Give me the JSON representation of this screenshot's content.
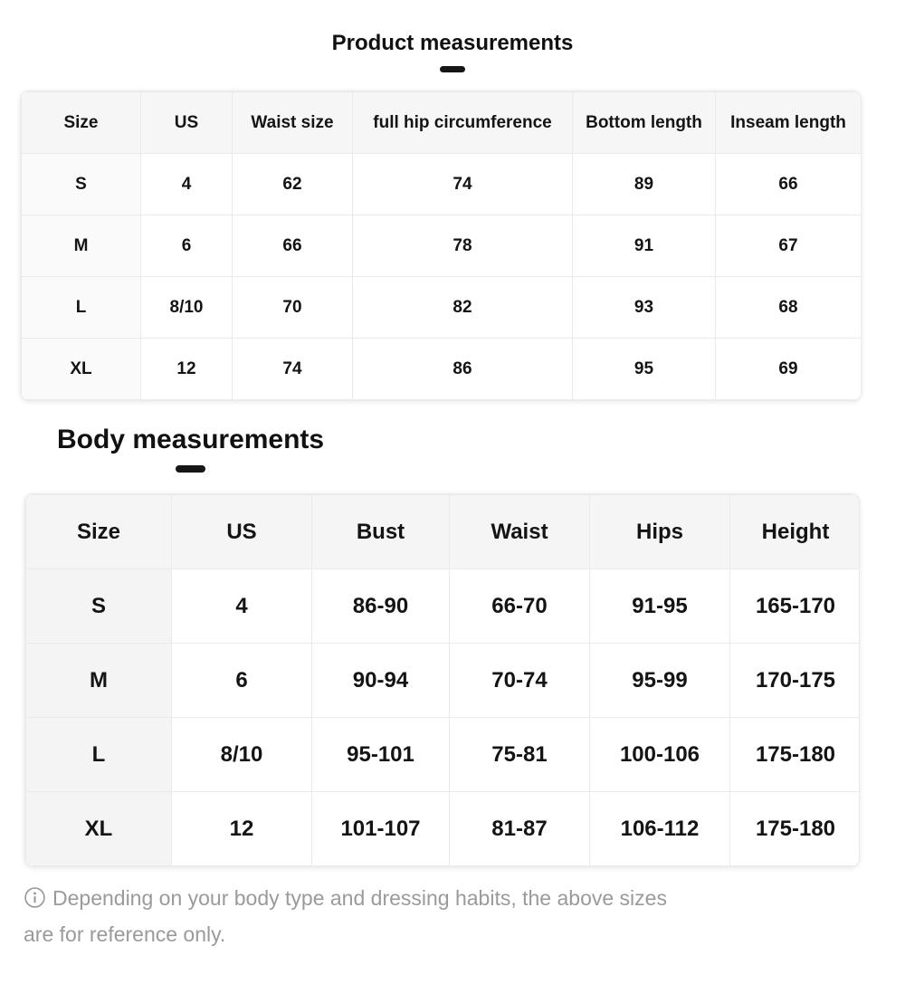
{
  "theme": {
    "text_color": "#161616",
    "muted_color": "#9a9a9a",
    "border_color": "#eaeaea",
    "header_bg": "#f6f6f6",
    "dash_color": "#161616"
  },
  "product_table": {
    "title": "Product measurements",
    "columns": [
      "Size",
      "US",
      "Waist size",
      "full hip circumference",
      "Bottom length",
      "Inseam length"
    ],
    "rows": [
      [
        "S",
        "4",
        "62",
        "74",
        "89",
        "66"
      ],
      [
        "M",
        "6",
        "66",
        "78",
        "91",
        "67"
      ],
      [
        "L",
        "8/10",
        "70",
        "82",
        "93",
        "68"
      ],
      [
        "XL",
        "12",
        "74",
        "86",
        "95",
        "69"
      ]
    ]
  },
  "body_table": {
    "title": "Body measurements",
    "columns": [
      "Size",
      "US",
      "Bust",
      "Waist",
      "Hips",
      "Height"
    ],
    "rows": [
      [
        "S",
        "4",
        "86-90",
        "66-70",
        "91-95",
        "165-170"
      ],
      [
        "M",
        "6",
        "90-94",
        "70-74",
        "95-99",
        "170-175"
      ],
      [
        "L",
        "8/10",
        "95-101",
        "75-81",
        "100-106",
        "175-180"
      ],
      [
        "XL",
        "12",
        "101-107",
        "81-87",
        "106-112",
        "175-180"
      ]
    ]
  },
  "footnote": {
    "text": "Depending on your body type and dressing habits, the above sizes are for reference only."
  }
}
